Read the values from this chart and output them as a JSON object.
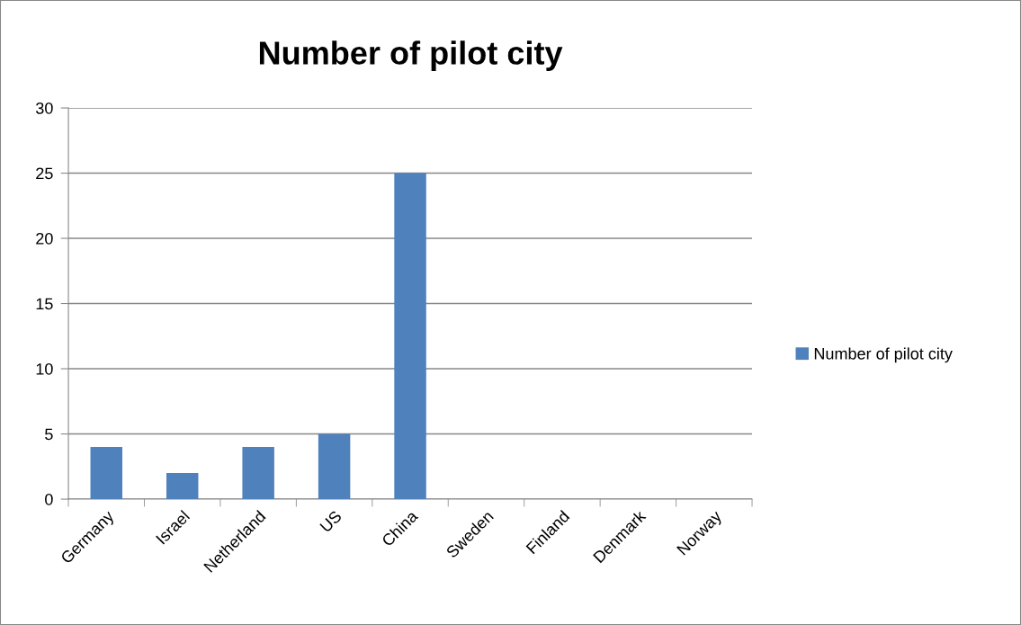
{
  "chart_data": {
    "type": "bar",
    "title": "Number of pilot city",
    "categories": [
      "Germany",
      "Israel",
      "Netherland",
      "US",
      "China",
      "Sweden",
      "Finland",
      "Denmark",
      "Norway"
    ],
    "series": [
      {
        "name": "Number of pilot city",
        "color": "#4f81bd",
        "values": [
          4,
          2,
          4,
          5,
          25,
          0,
          0,
          0,
          0
        ]
      }
    ],
    "ylim": [
      0,
      30
    ],
    "yticks": [
      0,
      5,
      10,
      15,
      20,
      25,
      30
    ],
    "grid": "y",
    "legend": "right"
  }
}
